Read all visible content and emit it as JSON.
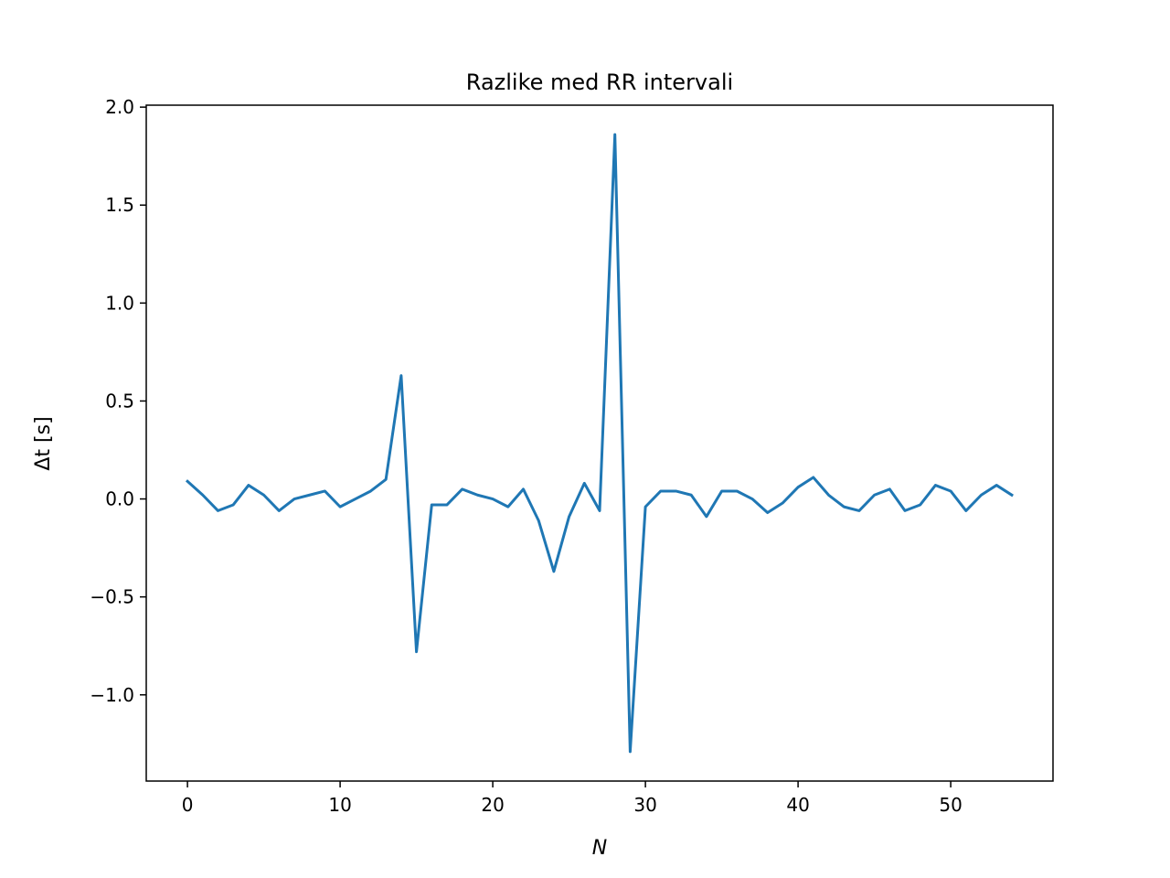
{
  "chart_data": {
    "type": "line",
    "title": "Razlike med RR intervali",
    "xlabel": "N",
    "ylabel": "Δt [s]",
    "xlim": [
      -2.7,
      56.7
    ],
    "ylim": [
      -1.44,
      2.01
    ],
    "x_ticks": [
      0,
      10,
      20,
      30,
      40,
      50
    ],
    "x_tick_labels": [
      "0",
      "10",
      "20",
      "30",
      "40",
      "50"
    ],
    "y_ticks": [
      -1.0,
      -0.5,
      0.0,
      0.5,
      1.0,
      1.5,
      2.0
    ],
    "y_tick_labels": [
      "−1.0",
      "−0.5",
      "0.0",
      "0.5",
      "1.0",
      "1.5",
      "2.0"
    ],
    "grid": false,
    "series": [
      {
        "color": "#1f77b4",
        "x": [
          0,
          1,
          2,
          3,
          4,
          5,
          6,
          7,
          8,
          9,
          10,
          11,
          12,
          13,
          14,
          15,
          16,
          17,
          18,
          19,
          20,
          21,
          22,
          23,
          24,
          25,
          26,
          27,
          28,
          29,
          30,
          31,
          32,
          33,
          34,
          35,
          36,
          37,
          38,
          39,
          40,
          41,
          42,
          43,
          44,
          45,
          46,
          47,
          48,
          49,
          50,
          51,
          52,
          53,
          54
        ],
        "y": [
          0.09,
          0.02,
          -0.06,
          -0.03,
          0.07,
          0.02,
          -0.06,
          0.0,
          0.02,
          0.04,
          -0.04,
          0.0,
          0.04,
          0.1,
          0.63,
          -0.78,
          -0.03,
          -0.03,
          0.05,
          0.02,
          0.0,
          -0.04,
          0.05,
          -0.11,
          -0.37,
          -0.09,
          0.08,
          -0.06,
          1.86,
          -1.29,
          -0.04,
          0.04,
          0.04,
          0.02,
          -0.09,
          0.04,
          0.04,
          0.0,
          -0.07,
          -0.02,
          0.06,
          0.11,
          0.02,
          -0.04,
          -0.06,
          0.02,
          0.05,
          -0.06,
          -0.03,
          0.07,
          0.04,
          -0.06,
          0.02,
          0.07,
          0.02
        ]
      }
    ]
  }
}
